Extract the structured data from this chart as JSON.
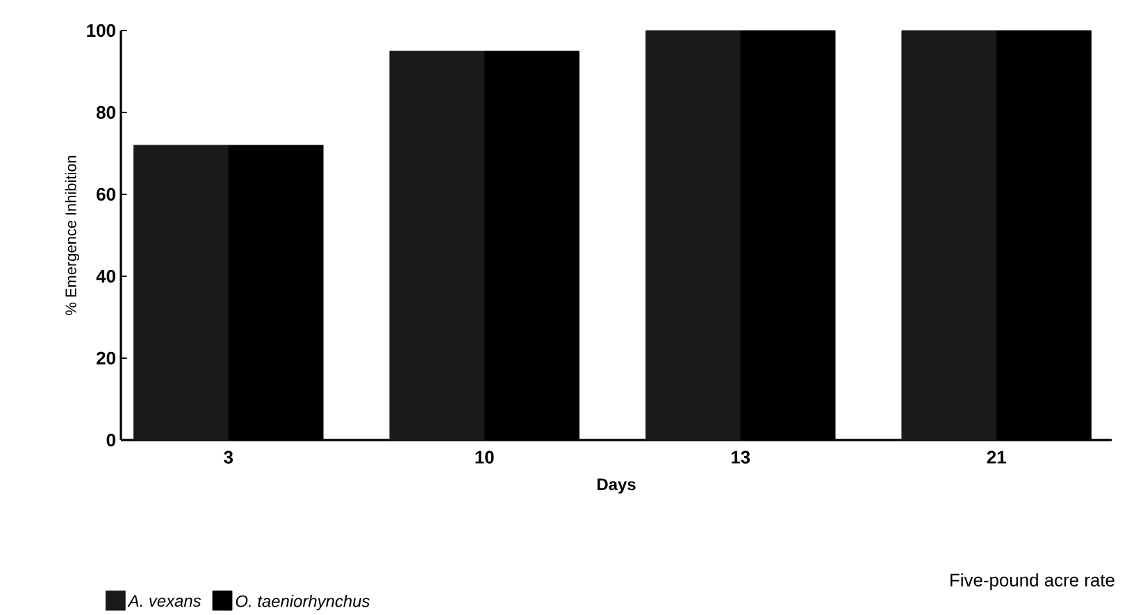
{
  "chart_data": {
    "type": "bar",
    "xlabel": "Days",
    "ylabel": "% Emergence Inhibition",
    "categories": [
      "3",
      "10",
      "13",
      "21"
    ],
    "series": [
      {
        "name": "A. vexans",
        "color": "#1a1a1a",
        "values": [
          72,
          95,
          100,
          100
        ]
      },
      {
        "name": "O. taeniorhynchus",
        "color": "#000000",
        "values": [
          72,
          95,
          100,
          100
        ]
      }
    ],
    "ylim": [
      0,
      100
    ],
    "yticks": [
      0,
      20,
      40,
      60,
      80,
      100
    ],
    "grid": false,
    "legend": "bottom left",
    "annotations": [
      "Five-pound acre rate"
    ]
  }
}
